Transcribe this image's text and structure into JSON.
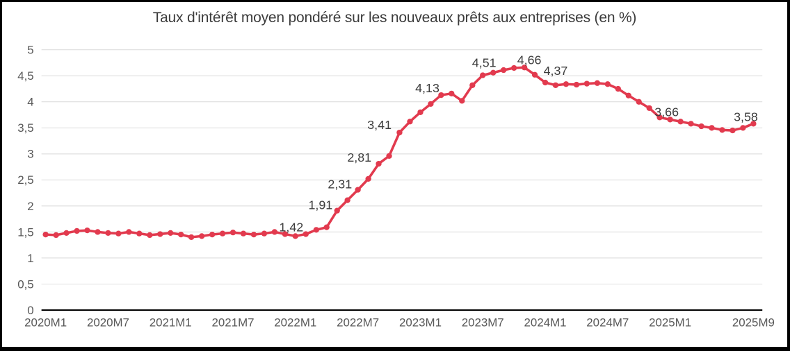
{
  "colors": {
    "line": "#e23a4e",
    "grid": "#d9d9d9",
    "axis": "#000000",
    "tick_text": "#595959",
    "data_label_text": "#3d3d3d",
    "title_text": "#3b3b3b",
    "background": "#ffffff",
    "frame": "#000000"
  },
  "chart_data": {
    "type": "line",
    "title": "Taux d'intérêt moyen pondéré sur les nouveaux prêts aux entreprises (en %)",
    "xlabel": "",
    "ylabel": "",
    "ylim": [
      0,
      5
    ],
    "grid": true,
    "legend": "none",
    "line_color": "#e23a4e",
    "x": [
      "2020M1",
      "2020M2",
      "2020M3",
      "2020M4",
      "2020M5",
      "2020M6",
      "2020M7",
      "2020M8",
      "2020M9",
      "2020M10",
      "2020M11",
      "2020M12",
      "2021M1",
      "2021M2",
      "2021M3",
      "2021M4",
      "2021M5",
      "2021M6",
      "2021M7",
      "2021M8",
      "2021M9",
      "2021M10",
      "2021M11",
      "2021M12",
      "2022M1",
      "2022M2",
      "2022M3",
      "2022M4",
      "2022M5",
      "2022M6",
      "2022M7",
      "2022M8",
      "2022M9",
      "2022M10",
      "2022M11",
      "2022M12",
      "2023M1",
      "2023M2",
      "2023M3",
      "2023M4",
      "2023M5",
      "2023M6",
      "2023M7",
      "2023M8",
      "2023M9",
      "2023M10",
      "2023M11",
      "2023M12",
      "2024M1",
      "2024M2",
      "2024M3",
      "2024M4",
      "2024M5",
      "2024M6",
      "2024M7",
      "2024M8",
      "2024M9",
      "2024M10",
      "2024M11",
      "2024M12",
      "2025M1",
      "2025M2",
      "2025M3",
      "2025M4",
      "2025M5",
      "2025M6",
      "2025M7",
      "2025M8",
      "2025M9"
    ],
    "values": [
      1.45,
      1.44,
      1.48,
      1.52,
      1.53,
      1.5,
      1.48,
      1.47,
      1.5,
      1.47,
      1.44,
      1.46,
      1.48,
      1.45,
      1.4,
      1.42,
      1.45,
      1.47,
      1.49,
      1.47,
      1.45,
      1.47,
      1.5,
      1.46,
      1.42,
      1.46,
      1.54,
      1.59,
      1.91,
      2.11,
      2.31,
      2.52,
      2.81,
      2.96,
      3.41,
      3.62,
      3.8,
      3.96,
      4.13,
      4.16,
      4.02,
      4.32,
      4.51,
      4.56,
      4.61,
      4.65,
      4.66,
      4.52,
      4.37,
      4.32,
      4.34,
      4.33,
      4.35,
      4.36,
      4.34,
      4.25,
      4.12,
      4.0,
      3.88,
      3.7,
      3.66,
      3.62,
      3.58,
      3.53,
      3.5,
      3.46,
      3.45,
      3.5,
      3.58
    ],
    "point_labels": [
      {
        "x": "2022M1",
        "text": "1,42"
      },
      {
        "x": "2022M5",
        "text": "1,91"
      },
      {
        "x": "2022M7",
        "text": "2,31"
      },
      {
        "x": "2022M9",
        "text": "2,81"
      },
      {
        "x": "2022M11",
        "text": "3,41"
      },
      {
        "x": "2023M3",
        "text": "4,13"
      },
      {
        "x": "2023M7",
        "text": "4,51"
      },
      {
        "x": "2023M11",
        "text": "4,66"
      },
      {
        "x": "2024M1",
        "text": "4,37"
      },
      {
        "x": "2025M1",
        "text": "3,66"
      },
      {
        "x": "2025M9",
        "text": "3,58"
      }
    ],
    "x_tick_labels": [
      "2020M1",
      "2020M7",
      "2021M1",
      "2021M7",
      "2022M1",
      "2022M7",
      "2023M1",
      "2023M7",
      "2024M1",
      "2024M7",
      "2025M1",
      "2025M9"
    ],
    "y_tick_labels": [
      "0",
      "0,5",
      "1",
      "1,5",
      "2",
      "2,5",
      "3",
      "3,5",
      "4",
      "4,5",
      "5"
    ]
  }
}
